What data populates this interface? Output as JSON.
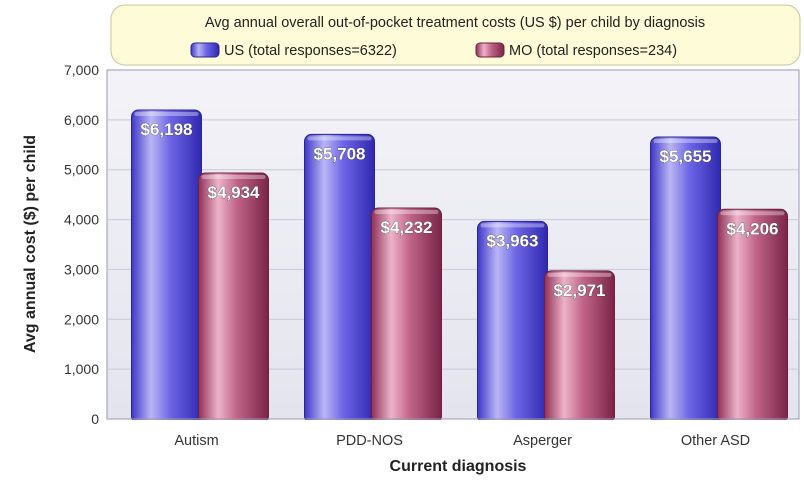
{
  "chart_data": {
    "type": "bar",
    "title": "Avg annual overall out-of-pocket treatment costs (US $) per child by diagnosis",
    "xlabel": "Current diagnosis",
    "ylabel": "Avg annual cost ($) per child",
    "categories": [
      "Autism",
      "PDD-NOS",
      "Asperger",
      "Other ASD"
    ],
    "series": [
      {
        "name": "US (total responses=6322)",
        "values": [
          6198,
          5708,
          3963,
          5655
        ],
        "data_labels": [
          "$6,198",
          "$5,708",
          "$3,963",
          "$5,655"
        ],
        "color": "#6b63e0"
      },
      {
        "name": "MO (total responses=234)",
        "values": [
          4934,
          4232,
          2971,
          4206
        ],
        "data_labels": [
          "$4,934",
          "$4,232",
          "$2,971",
          "$4,206"
        ],
        "color": "#b8557a"
      }
    ],
    "ylim": [
      0,
      7000
    ],
    "yticks": [
      0,
      1000,
      2000,
      3000,
      4000,
      5000,
      6000,
      7000
    ],
    "ytick_labels": [
      "0",
      "1,000",
      "2,000",
      "3,000",
      "4,000",
      "5,000",
      "6,000",
      "7,000"
    ],
    "grid": true,
    "legend_position": "top-center"
  },
  "colors": {
    "plot_background": "#ececf4",
    "title_box_background": "#fdfbd8",
    "grid": "#c8c8d8"
  }
}
